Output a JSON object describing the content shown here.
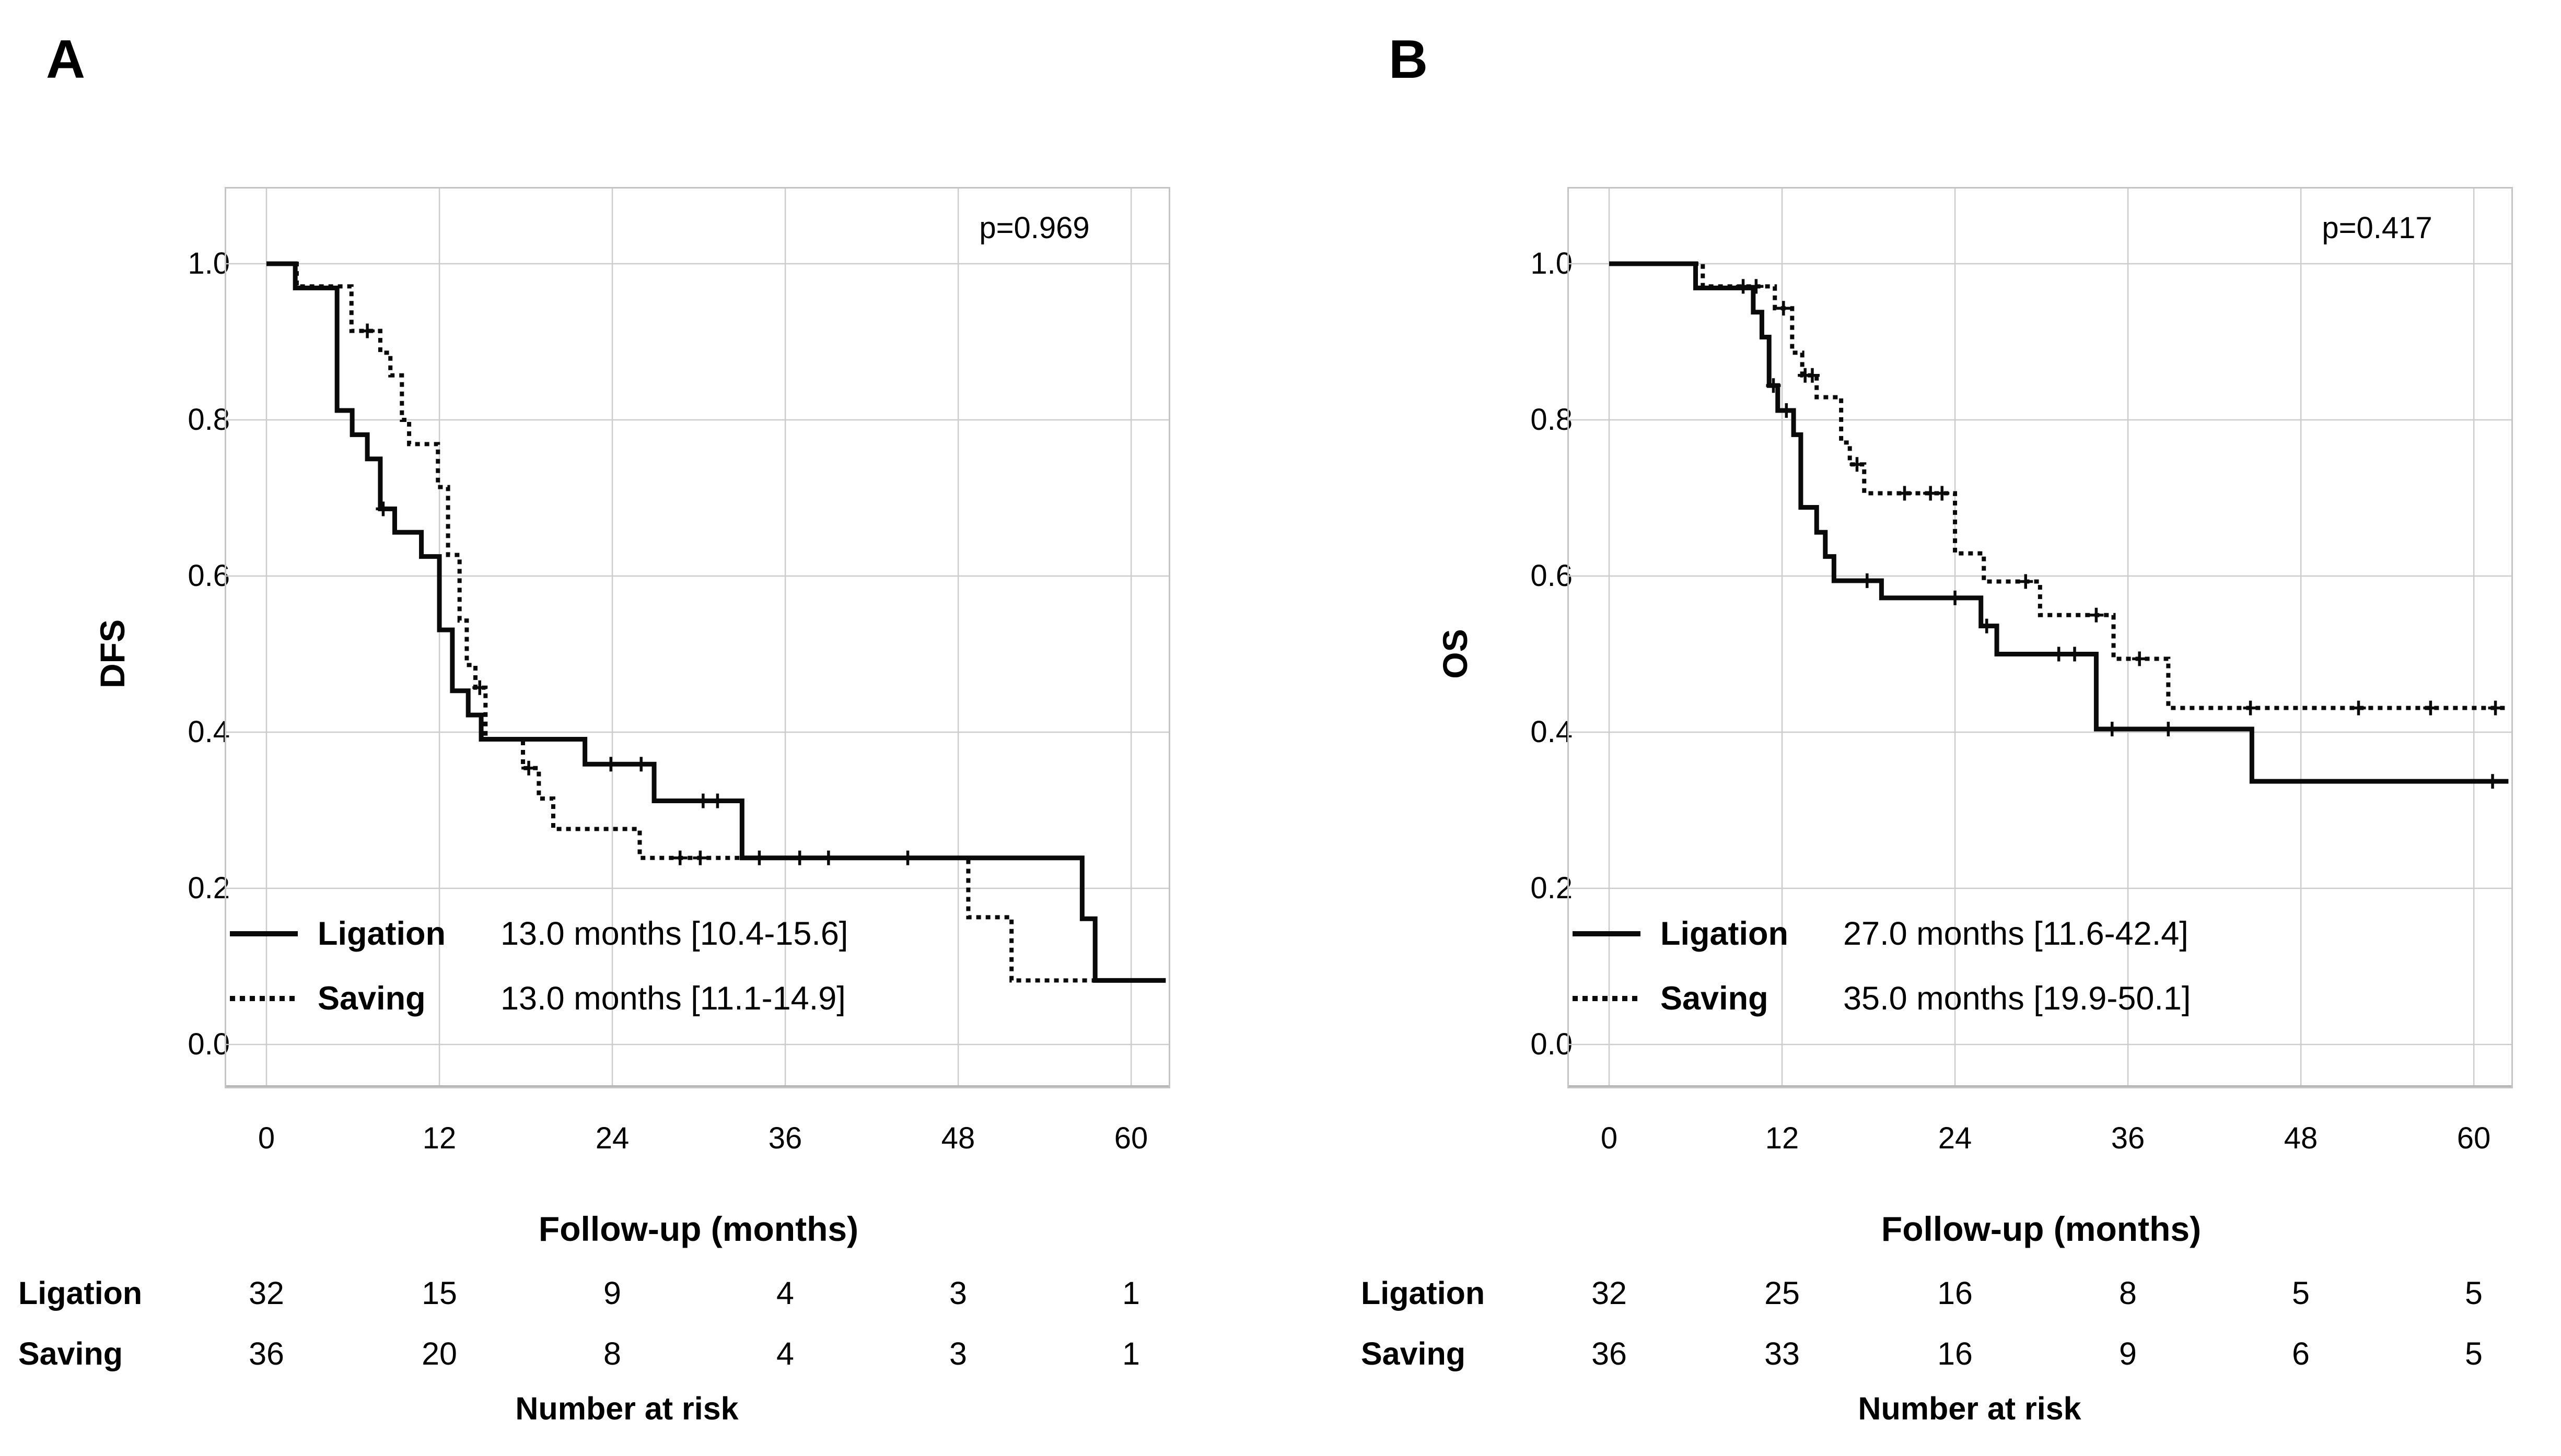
{
  "panels": [
    {
      "label": "A",
      "p_value": "p=0.969",
      "y_axis": {
        "title": "DFS",
        "ticks": [
          "1.0",
          "0.8",
          "0.6",
          "0.4",
          "0.2",
          "0.0"
        ]
      },
      "x_axis": {
        "title": "Follow-up (months)",
        "ticks": [
          "0",
          "12",
          "24",
          "36",
          "48",
          "60"
        ]
      },
      "legend": [
        {
          "name": "Ligation",
          "median": "13.0 months [10.4-15.6]"
        },
        {
          "name": "Saving",
          "median": "13.0 months [11.1-14.9]"
        }
      ],
      "risk_table": {
        "caption": "Number at risk",
        "rows": [
          {
            "name": "Ligation",
            "counts": [
              "32",
              "15",
              "9",
              "4",
              "3",
              "1"
            ]
          },
          {
            "name": "Saving",
            "counts": [
              "36",
              "20",
              "8",
              "4",
              "3",
              "1"
            ]
          }
        ]
      }
    },
    {
      "label": "B",
      "p_value": "p=0.417",
      "y_axis": {
        "title": "OS",
        "ticks": [
          "1.0",
          "0.8",
          "0.6",
          "0.4",
          "0.2",
          "0.0"
        ]
      },
      "x_axis": {
        "title": "Follow-up (months)",
        "ticks": [
          "0",
          "12",
          "24",
          "36",
          "48",
          "60"
        ]
      },
      "legend": [
        {
          "name": "Ligation",
          "median": "27.0 months [11.6-42.4]"
        },
        {
          "name": "Saving",
          "median": "35.0 months [19.9-50.1]"
        }
      ],
      "risk_table": {
        "caption": "Number at risk",
        "rows": [
          {
            "name": "Ligation",
            "counts": [
              "32",
              "25",
              "16",
              "8",
              "5",
              "5"
            ]
          },
          {
            "name": "Saving",
            "counts": [
              "36",
              "33",
              "16",
              "9",
              "6",
              "5"
            ]
          }
        ]
      }
    }
  ],
  "chart_data": [
    {
      "type": "line",
      "subtype": "kaplan-meier-step",
      "title": "DFS",
      "xlabel": "Follow-up (months)",
      "ylabel": "DFS",
      "xlim": [
        0,
        62.4
      ],
      "ylim": [
        0.0,
        1.0
      ],
      "xticks": [
        0,
        12,
        24,
        36,
        48,
        60
      ],
      "yticks": [
        0.0,
        0.2,
        0.4,
        0.6,
        0.8,
        1.0
      ],
      "grid": true,
      "legend_position": "bottom-left-inside",
      "p_value": 0.969,
      "series": [
        {
          "name": "Ligation",
          "line_style": "solid",
          "median_months": 13.0,
          "median_ci": [
            10.4,
            15.6
          ],
          "start": [
            0,
            1.0
          ],
          "end_x": 62.4,
          "steps": [
            [
              2.0,
              0.969
            ],
            [
              4.9,
              0.812
            ],
            [
              5.95,
              0.781
            ],
            [
              7.0,
              0.75
            ],
            [
              7.9,
              0.686
            ],
            [
              8.9,
              0.656
            ],
            [
              10.75,
              0.625
            ],
            [
              12.0,
              0.531
            ],
            [
              12.9,
              0.453
            ],
            [
              14.0,
              0.422
            ],
            [
              14.9,
              0.391
            ],
            [
              22.1,
              0.359
            ],
            [
              26.9,
              0.312
            ],
            [
              33.0,
              0.239
            ],
            [
              56.6,
              0.161
            ],
            [
              57.5,
              0.082
            ]
          ],
          "censors": [
            [
              8.1,
              0.686
            ],
            [
              23.9,
              0.359
            ],
            [
              26.0,
              0.359
            ],
            [
              30.3,
              0.312
            ],
            [
              31.3,
              0.312
            ],
            [
              34.2,
              0.239
            ],
            [
              37.0,
              0.239
            ],
            [
              39.0,
              0.239
            ],
            [
              44.5,
              0.239
            ]
          ]
        },
        {
          "name": "Saving",
          "line_style": "dotted",
          "median_months": 13.0,
          "median_ci": [
            11.1,
            14.9
          ],
          "start": [
            0,
            1.0
          ],
          "end_x": 62.4,
          "steps": [
            [
              2.1,
              0.971
            ],
            [
              5.9,
              0.914
            ],
            [
              7.9,
              0.886
            ],
            [
              8.6,
              0.857
            ],
            [
              9.4,
              0.8
            ],
            [
              9.9,
              0.769
            ],
            [
              11.9,
              0.714
            ],
            [
              12.6,
              0.627
            ],
            [
              13.4,
              0.543
            ],
            [
              13.9,
              0.486
            ],
            [
              14.5,
              0.457
            ],
            [
              15.2,
              0.391
            ],
            [
              17.8,
              0.354
            ],
            [
              18.9,
              0.315
            ],
            [
              19.9,
              0.276
            ],
            [
              25.9,
              0.239
            ],
            [
              48.7,
              0.163
            ],
            [
              51.7,
              0.082
            ]
          ],
          "censors": [
            [
              7.0,
              0.914
            ],
            [
              14.8,
              0.457
            ],
            [
              18.2,
              0.354
            ],
            [
              28.7,
              0.239
            ],
            [
              30.1,
              0.239
            ]
          ]
        }
      ],
      "number_at_risk": {
        "times": [
          0,
          12,
          24,
          36,
          48,
          60
        ],
        "Ligation": [
          32,
          15,
          9,
          4,
          3,
          1
        ],
        "Saving": [
          36,
          20,
          8,
          4,
          3,
          1
        ]
      }
    },
    {
      "type": "line",
      "subtype": "kaplan-meier-step",
      "title": "OS",
      "xlabel": "Follow-up (months)",
      "ylabel": "OS",
      "xlim": [
        0,
        62.4
      ],
      "ylim": [
        0.0,
        1.0
      ],
      "xticks": [
        0,
        12,
        24,
        36,
        48,
        60
      ],
      "yticks": [
        0.0,
        0.2,
        0.4,
        0.6,
        0.8,
        1.0
      ],
      "grid": true,
      "legend_position": "bottom-left-inside",
      "p_value": 0.417,
      "series": [
        {
          "name": "Ligation",
          "line_style": "solid",
          "median_months": 27.0,
          "median_ci": [
            11.6,
            42.4
          ],
          "start": [
            0,
            1.0
          ],
          "end_x": 62.4,
          "steps": [
            [
              6.0,
              0.969
            ],
            [
              10.0,
              0.938
            ],
            [
              10.6,
              0.906
            ],
            [
              11.1,
              0.844
            ],
            [
              11.7,
              0.812
            ],
            [
              12.8,
              0.781
            ],
            [
              13.3,
              0.688
            ],
            [
              14.4,
              0.656
            ],
            [
              15.0,
              0.625
            ],
            [
              15.6,
              0.594
            ],
            [
              18.9,
              0.572
            ],
            [
              25.8,
              0.536
            ],
            [
              26.9,
              0.5
            ],
            [
              33.8,
              0.404
            ],
            [
              44.6,
              0.337
            ]
          ],
          "censors": [
            [
              11.4,
              0.844
            ],
            [
              12.3,
              0.812
            ],
            [
              17.9,
              0.594
            ],
            [
              24.0,
              0.572
            ],
            [
              26.2,
              0.536
            ],
            [
              31.2,
              0.5
            ],
            [
              32.3,
              0.5
            ],
            [
              34.9,
              0.404
            ],
            [
              38.8,
              0.404
            ],
            [
              61.3,
              0.337
            ]
          ]
        },
        {
          "name": "Saving",
          "line_style": "dotted",
          "median_months": 35.0,
          "median_ci": [
            19.9,
            50.1
          ],
          "start": [
            0,
            1.0
          ],
          "end_x": 62.4,
          "steps": [
            [
              6.5,
              0.971
            ],
            [
              11.5,
              0.943
            ],
            [
              12.7,
              0.886
            ],
            [
              13.4,
              0.857
            ],
            [
              14.4,
              0.829
            ],
            [
              16.1,
              0.771
            ],
            [
              16.7,
              0.743
            ],
            [
              17.7,
              0.706
            ],
            [
              24.0,
              0.629
            ],
            [
              26.0,
              0.593
            ],
            [
              29.9,
              0.55
            ],
            [
              35.0,
              0.494
            ],
            [
              38.8,
              0.431
            ]
          ],
          "censors": [
            [
              9.3,
              0.971
            ],
            [
              10.2,
              0.971
            ],
            [
              12.1,
              0.943
            ],
            [
              13.6,
              0.857
            ],
            [
              14.1,
              0.857
            ],
            [
              17.2,
              0.743
            ],
            [
              20.5,
              0.706
            ],
            [
              22.3,
              0.706
            ],
            [
              23.1,
              0.706
            ],
            [
              28.9,
              0.593
            ],
            [
              33.8,
              0.55
            ],
            [
              36.8,
              0.494
            ],
            [
              44.5,
              0.431
            ],
            [
              52.0,
              0.431
            ],
            [
              57.0,
              0.431
            ],
            [
              61.5,
              0.431
            ]
          ]
        }
      ],
      "number_at_risk": {
        "times": [
          0,
          12,
          24,
          36,
          48,
          60
        ],
        "Ligation": [
          32,
          25,
          16,
          8,
          5,
          5
        ],
        "Saving": [
          36,
          33,
          16,
          9,
          6,
          5
        ]
      }
    }
  ]
}
